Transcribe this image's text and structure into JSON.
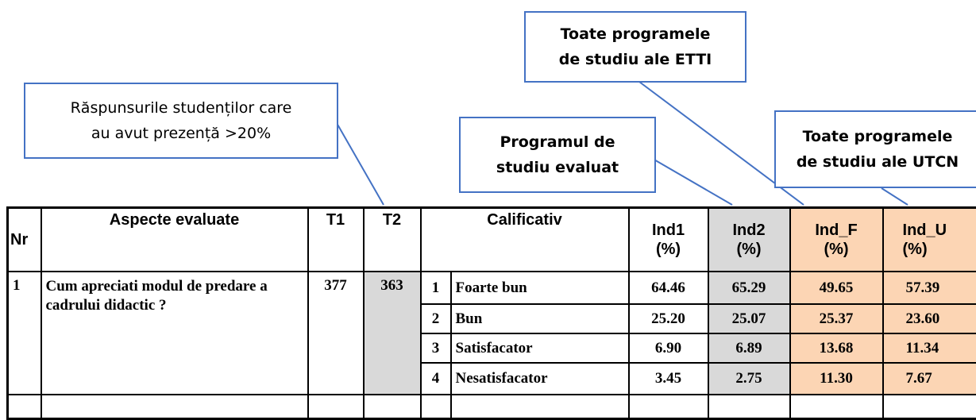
{
  "callouts": [
    {
      "lines": [
        "Răspunsurile studenților care",
        "au avut prezență >20%"
      ]
    },
    {
      "lines": [
        "Programul de",
        "studiu evaluat"
      ]
    },
    {
      "lines": [
        "Toate programele",
        "de studiu ale ETTI"
      ]
    },
    {
      "lines": [
        "Toate programele",
        "de studiu ale UTCN"
      ]
    }
  ],
  "table": {
    "header": {
      "nr": "Nr",
      "aspect": "Aspecte evaluate",
      "t1": "T1",
      "t2": "T2",
      "calificativ": "Calificativ",
      "ind1": [
        "Ind1",
        "(%)"
      ],
      "ind2": [
        "Ind2",
        "(%)"
      ],
      "indf": [
        "Ind_F",
        "(%)"
      ],
      "indu": [
        "Ind_U",
        "(%)"
      ]
    },
    "rows": [
      {
        "nr": "1",
        "aspect": "Cum apreciati modul de predare a cadrului didactic ?",
        "t1": "377",
        "t2": "363",
        "ratings": [
          {
            "n": "1",
            "label": "Foarte bun",
            "ind1": "64.46",
            "ind2": "65.29",
            "indf": "49.65",
            "indu": "57.39"
          },
          {
            "n": "2",
            "label": "Bun",
            "ind1": "25.20",
            "ind2": "25.07",
            "indf": "25.37",
            "indu": "23.60"
          },
          {
            "n": "3",
            "label": "Satisfacator",
            "ind1": "6.90",
            "ind2": "6.89",
            "indf": "13.68",
            "indu": "11.34"
          },
          {
            "n": "4",
            "label": "Nesatisfacator",
            "ind1": "3.45",
            "ind2": "2.75",
            "indf": "11.30",
            "indu": "7.67"
          }
        ]
      }
    ]
  }
}
